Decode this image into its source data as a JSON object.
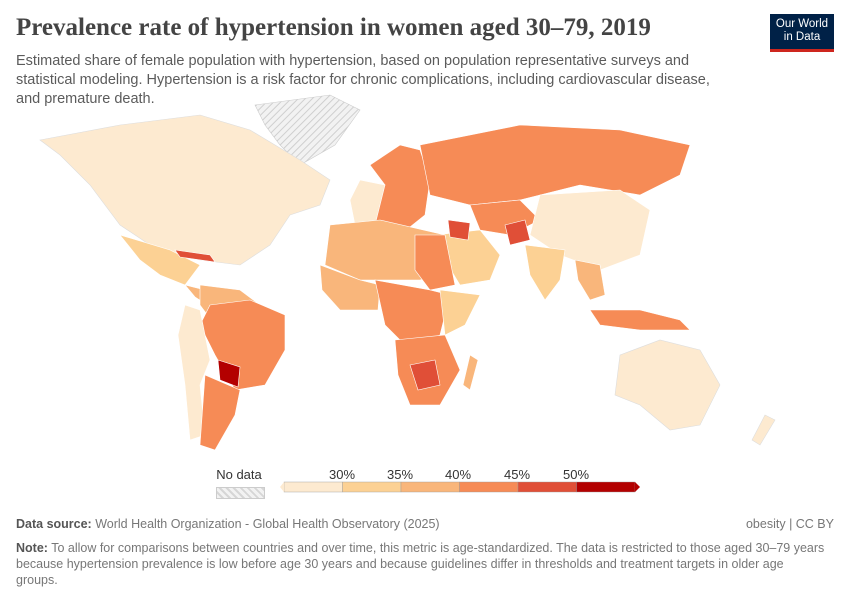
{
  "header": {
    "title": "Prevalence rate of hypertension in women aged 30–79, 2019",
    "subtitle": "Estimated share of female population with hypertension, based on population representative surveys and statistical modeling. Hypertension is a risk factor for chronic complications, including cardiovascular disease, and premature death.",
    "logo_line1": "Our World",
    "logo_line2": "in Data"
  },
  "legend": {
    "no_data_label": "No data",
    "ticks": [
      "30%",
      "35%",
      "40%",
      "45%",
      "50%"
    ],
    "colors": [
      "#fdead0",
      "#fcd194",
      "#f9b67b",
      "#f68b56",
      "#e04f37",
      "#b30000"
    ],
    "no_data_color": "#e8e8e8"
  },
  "footer": {
    "source_label": "Data source:",
    "source_text": "World Health Organization - Global Health Observatory (2025)",
    "license": "obesity | CC BY",
    "note_label": "Note:",
    "note_text": "To allow for comparisons between countries and over time, this metric is age-standardized. The data is restricted to those aged 30–79 years because hypertension prevalence is low before age 30 years and because guidelines differ in thresholds and treatment targets in older age groups."
  }
}
